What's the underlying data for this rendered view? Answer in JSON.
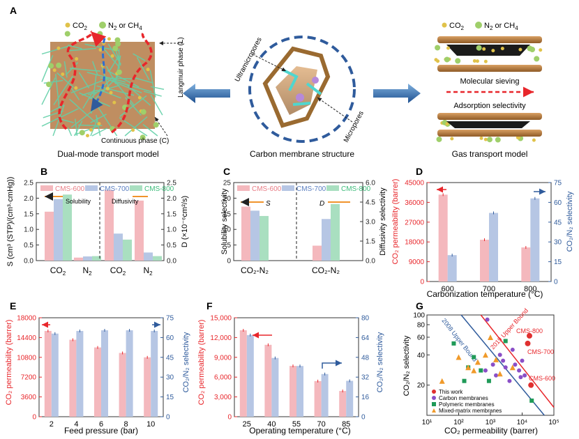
{
  "panels": {
    "A": {
      "letter": "A",
      "legend_co2": "CO",
      "legend_co2_sub": "2",
      "legend_n2": "N",
      "legend_n2_sub": "2",
      "legend_or": " or CH",
      "legend_ch4_sub": "4",
      "langmuir_label": "Langmuir phase (L)",
      "continuous_label": "Continuous phase (C)",
      "left_caption": "Dual-mode transport model",
      "center_caption": "Carbon membrane structure",
      "right_caption": "Gas transport model",
      "ultramicropores": "Ultramicropores",
      "micropores": "Micropores",
      "molecular_sieving": "Molecular sieving",
      "adsorption_selectivity": "Adsorption selectivity"
    },
    "B": {
      "letter": "B",
      "legend": [
        "CMS-600",
        "CMS-700",
        "CMS-800"
      ],
      "solubility_label": "Solubility",
      "diffusivity_label": "Diffusivity",
      "ylabel_left": "S (cm³ (STP)/(cm³·cmHg))",
      "ylabel_right": "D (×10⁻⁶cm²/s)",
      "xlabels": [
        "CO",
        "N",
        "CO",
        "N"
      ],
      "x_sub": "2",
      "yticks_left": [
        "0.0",
        "0.5",
        "1.0",
        "1.5",
        "2.0",
        "2.5"
      ],
      "yticks_right": [
        "0.0",
        "0.5",
        "1.0",
        "1.5",
        "2.0",
        "2.5"
      ]
    },
    "C": {
      "letter": "C",
      "legend": [
        "CMS-600",
        "CMS-700",
        "CMS-800"
      ],
      "s_label": "S",
      "d_label": "D",
      "ylabel_left": "Solubility selectivity",
      "ylabel_right": "Diffusivity selectivity",
      "xlabels": [
        "CO₂-N₂",
        "CO₂-N₂"
      ],
      "yticks_left": [
        "0",
        "5",
        "10",
        "15",
        "20",
        "25"
      ],
      "yticks_right": [
        "0.0",
        "1.5",
        "3.0",
        "4.5",
        "6.0"
      ]
    },
    "D": {
      "letter": "D",
      "ylabel_left": "CO₂ permeability (barrer)",
      "ylabel_right": "CO₂/N₂ selectivity",
      "xlabel": "Carbonization temperature (°C)",
      "xticks": [
        "600",
        "700",
        "800"
      ],
      "yticks_left": [
        "0",
        "9000",
        "18000",
        "27000",
        "36000",
        "45000"
      ],
      "yticks_right": [
        "0",
        "15",
        "30",
        "45",
        "60",
        "75"
      ]
    },
    "E": {
      "letter": "E",
      "ylabel_left": "CO₂ permeability (barrer)",
      "ylabel_right": "CO₂/N₂ selectivity",
      "xlabel": "Feed pressure (bar)",
      "xticks": [
        "2",
        "4",
        "6",
        "8",
        "10"
      ],
      "yticks_left": [
        "0",
        "3600",
        "7200",
        "10800",
        "14400",
        "18000"
      ],
      "yticks_right": [
        "0",
        "15",
        "30",
        "45",
        "60",
        "75"
      ]
    },
    "F": {
      "letter": "F",
      "ylabel_left": "CO₂ permeability (barrer)",
      "ylabel_right": "CO₂/N₂ selectivity",
      "xlabel": "Operating temperature (°C)",
      "xticks": [
        "25",
        "40",
        "55",
        "70",
        "85"
      ],
      "yticks_left": [
        "0",
        "3,000",
        "6,000",
        "9,000",
        "12,000",
        "15,000"
      ],
      "yticks_right": [
        "0",
        "16",
        "32",
        "48",
        "64",
        "80"
      ]
    },
    "G": {
      "letter": "G",
      "ylabel": "CO₂/N₂ selectivity",
      "xlabel": "CO₂ permeability (barrer)",
      "xticks": [
        "10¹",
        "10²",
        "10³",
        "10⁴",
        "10⁵"
      ],
      "yticks": [
        "20",
        "40",
        "60",
        "80",
        "100"
      ],
      "bound_2008": "2008 Upper Bound",
      "bound_2019": "2019 Upper Bound",
      "labels": [
        "CMS-800",
        "CMS-700",
        "CMS-600"
      ],
      "legend": [
        "This work",
        "Carbon membranes",
        "Polymeric membranes",
        "Mixed-matrix membranes"
      ]
    }
  },
  "colors": {
    "cms600": "#f4b8bd",
    "cms700": "#b6c6e4",
    "cms800": "#a9dfc0",
    "red": "#e8262b",
    "blue": "#2f5b9c",
    "orange": "#f0932b"
  },
  "chart_data": [
    {
      "id": "B",
      "type": "bar",
      "categories": [
        "CO2 (S)",
        "N2 (S)",
        "CO2 (D)",
        "N2 (D)"
      ],
      "series": [
        {
          "name": "CMS-600",
          "values": [
            1.63,
            0.1,
            2.35,
            2.0
          ]
        },
        {
          "name": "CMS-700",
          "values": [
            2.05,
            0.14,
            0.9,
            0.27
          ]
        },
        {
          "name": "CMS-800",
          "values": [
            2.2,
            0.15,
            0.7,
            0.15
          ]
        }
      ],
      "ylim": [
        0,
        2.6
      ],
      "y2lim": [
        0,
        2.6
      ]
    },
    {
      "id": "C",
      "type": "bar",
      "categories": [
        "Solubility CO2-N2",
        "Diffusivity CO2-N2"
      ],
      "series": [
        {
          "name": "CMS-600",
          "values": [
            17.3,
            1.15
          ]
        },
        {
          "name": "CMS-700",
          "values": [
            16.0,
            3.2
          ]
        },
        {
          "name": "CMS-800",
          "values": [
            14.3,
            4.35
          ]
        }
      ],
      "ylim": [
        0,
        25
      ],
      "y2lim": [
        0,
        6
      ]
    },
    {
      "id": "D",
      "type": "bar",
      "categories": [
        "600",
        "700",
        "800"
      ],
      "series": [
        {
          "name": "CO2 permeability",
          "values": [
            39500,
            19000,
            15500
          ]
        },
        {
          "name": "CO2/N2 selectivity",
          "values": [
            20,
            52,
            63
          ]
        }
      ],
      "ylim": [
        0,
        45000
      ],
      "y2lim": [
        0,
        75
      ]
    },
    {
      "id": "E",
      "type": "bar",
      "categories": [
        "2",
        "4",
        "6",
        "8",
        "10"
      ],
      "series": [
        {
          "name": "CO2 permeability",
          "values": [
            15600,
            14000,
            12600,
            11600,
            10800
          ]
        },
        {
          "name": "CO2/N2 selectivity",
          "values": [
            63,
            65,
            65.5,
            65.5,
            65
          ]
        }
      ],
      "ylim": [
        0,
        18000
      ],
      "y2lim": [
        0,
        75
      ]
    },
    {
      "id": "F",
      "type": "bar",
      "categories": [
        "25",
        "40",
        "55",
        "70",
        "85"
      ],
      "series": [
        {
          "name": "CO2 permeability",
          "values": [
            13100,
            10900,
            7700,
            5400,
            3900
          ]
        },
        {
          "name": "CO2/N2 selectivity",
          "values": [
            66,
            47.5,
            41,
            34.5,
            29
          ]
        }
      ],
      "ylim": [
        0,
        15000
      ],
      "y2lim": [
        0,
        80
      ]
    },
    {
      "id": "G",
      "type": "scatter",
      "xlim": [
        10,
        100000
      ],
      "ylim": [
        10,
        100
      ],
      "scale": "log-log",
      "series": [
        {
          "name": "This work",
          "points": [
            [
              17000,
              62
            ],
            [
              15000,
              52
            ],
            [
              19000,
              20
            ]
          ]
        },
        {
          "name": "Carbon membranes",
          "points": [
            [
              800,
              90
            ],
            [
              2000,
              40
            ],
            [
              3000,
              30
            ],
            [
              5000,
              45
            ],
            [
              1500,
              25
            ],
            [
              8000,
              28
            ],
            [
              4000,
              22
            ],
            [
              10000,
              35
            ],
            [
              6000,
              32
            ],
            [
              9000,
              24
            ],
            [
              12000,
              25
            ],
            [
              2500,
              35
            ],
            [
              700,
              28
            ],
            [
              1200,
              32
            ]
          ]
        },
        {
          "name": "Polymeric membranes",
          "points": [
            [
              70,
              52
            ],
            [
              200,
              30
            ],
            [
              500,
              28
            ],
            [
              3000,
              55
            ],
            [
              300,
              38
            ],
            [
              20000,
              14
            ],
            [
              150,
              22
            ],
            [
              900,
              22
            ]
          ]
        },
        {
          "name": "Mixed-matrix membranes",
          "points": [
            [
              30,
              22
            ],
            [
              100,
              38
            ],
            [
              300,
              28
            ],
            [
              1000,
              60
            ],
            [
              400,
              34
            ],
            [
              700,
              40
            ],
            [
              2000,
              26
            ],
            [
              5000,
              30
            ],
            [
              1500,
              36
            ],
            [
              200,
              30
            ]
          ]
        }
      ],
      "bounds": [
        {
          "name": "2008 Upper Bound"
        },
        {
          "name": "2019 Upper Bound"
        }
      ]
    }
  ]
}
